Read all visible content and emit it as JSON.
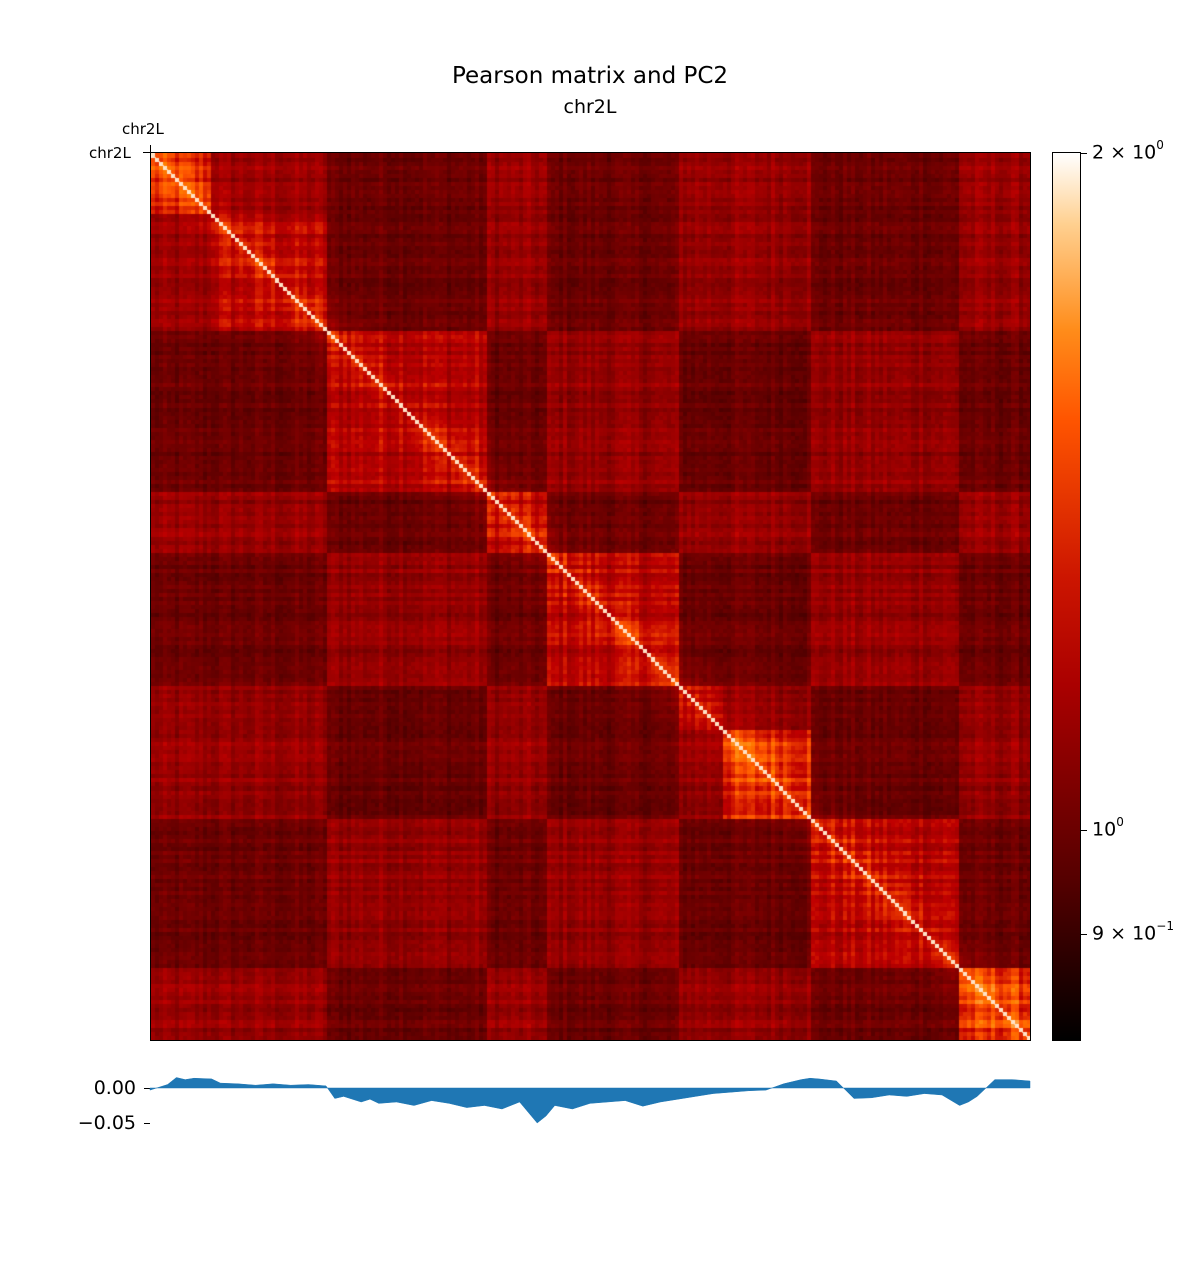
{
  "title": "Pearson matrix and PC2",
  "subtitle": "chr2L",
  "matrix": {
    "top_label": "chr2L",
    "left_label": "chr2L"
  },
  "colorbar": {
    "scale": "log",
    "colormap": "gist_heat",
    "min_color": "#000000",
    "max_color": "#ffffff",
    "ticks": [
      {
        "value": 2.0,
        "base": "2 × 10",
        "exp": "0"
      },
      {
        "value": 1.0,
        "base": "10",
        "exp": "0"
      },
      {
        "value": 0.9,
        "base": "9 × 10",
        "exp": "−1"
      }
    ]
  },
  "pc2": {
    "color": "#1f77b4",
    "yticks": [
      {
        "value": 0.0,
        "label": "0.00"
      },
      {
        "value": -0.05,
        "label": "−0.05"
      }
    ]
  },
  "chart_data": [
    {
      "type": "heatmap",
      "title": "Pearson matrix and PC2",
      "subtitle": "chr2L",
      "xlabel": "chr2L",
      "ylabel": "chr2L",
      "color_scale": "log",
      "colorbar_ticks": [
        2.0,
        1.0,
        0.9
      ],
      "description_of_values": "symmetric Pearson correlation matrix, diagonal maximum near 2, background roughly 0.9–1.1",
      "domain_breakpoints": [
        0.0,
        0.07,
        0.2,
        0.38,
        0.45,
        0.6,
        0.65,
        0.75,
        0.92,
        1.0
      ]
    },
    {
      "type": "area",
      "x_range": [
        0,
        1
      ],
      "ylim": [
        -0.06,
        0.025
      ],
      "y_ticks": [
        0.0,
        -0.05
      ],
      "x": [
        0.0,
        0.02,
        0.03,
        0.04,
        0.05,
        0.07,
        0.08,
        0.1,
        0.12,
        0.14,
        0.16,
        0.18,
        0.2,
        0.21,
        0.22,
        0.24,
        0.25,
        0.26,
        0.28,
        0.3,
        0.32,
        0.34,
        0.36,
        0.38,
        0.4,
        0.42,
        0.44,
        0.45,
        0.46,
        0.48,
        0.5,
        0.52,
        0.54,
        0.56,
        0.58,
        0.6,
        0.62,
        0.64,
        0.66,
        0.68,
        0.7,
        0.72,
        0.74,
        0.75,
        0.76,
        0.78,
        0.8,
        0.82,
        0.84,
        0.86,
        0.88,
        0.9,
        0.92,
        0.93,
        0.94,
        0.96,
        0.98,
        1.0
      ],
      "y": [
        -0.003,
        0.005,
        0.015,
        0.012,
        0.014,
        0.013,
        0.007,
        0.006,
        0.004,
        0.006,
        0.004,
        0.005,
        0.003,
        -0.015,
        -0.012,
        -0.02,
        -0.016,
        -0.022,
        -0.02,
        -0.025,
        -0.018,
        -0.022,
        -0.028,
        -0.025,
        -0.03,
        -0.02,
        -0.05,
        -0.04,
        -0.025,
        -0.03,
        -0.022,
        -0.02,
        -0.018,
        -0.026,
        -0.02,
        -0.016,
        -0.012,
        -0.008,
        -0.006,
        -0.004,
        -0.003,
        0.006,
        0.012,
        0.014,
        0.013,
        0.01,
        -0.015,
        -0.014,
        -0.01,
        -0.012,
        -0.008,
        -0.01,
        -0.025,
        -0.02,
        -0.012,
        0.012,
        0.012,
        0.01
      ]
    }
  ]
}
